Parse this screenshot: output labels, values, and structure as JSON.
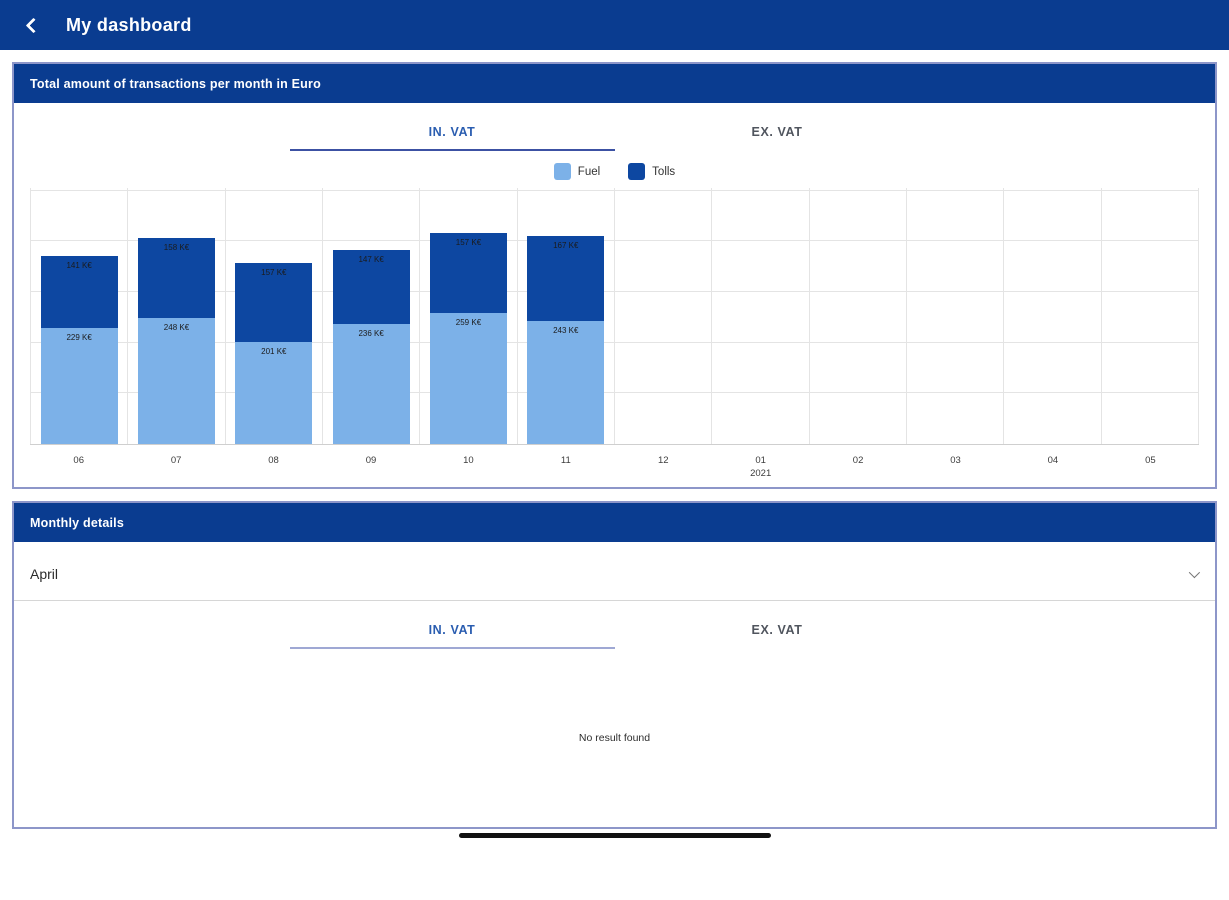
{
  "app_bar": {
    "back_icon": "chevron-left",
    "title": "My dashboard"
  },
  "chart_card": {
    "header": "Total amount of transactions per month in Euro",
    "tabs": [
      {
        "label": "IN. VAT",
        "active": true
      },
      {
        "label": "EX. VAT",
        "active": false
      }
    ],
    "legend": [
      {
        "label": "Fuel",
        "color": "#7CB1E8"
      },
      {
        "label": "Tolls",
        "color": "#0D47A1"
      }
    ]
  },
  "chart_data": {
    "type": "bar",
    "stacked": true,
    "title": "Total amount of transactions per month in Euro",
    "categories": [
      "06",
      "07",
      "08",
      "09",
      "10",
      "11",
      "12",
      "01",
      "02",
      "03",
      "04",
      "05"
    ],
    "x_secondary_label": {
      "index": 7,
      "label": "2021"
    },
    "series": [
      {
        "name": "Fuel",
        "color": "#7CB1E8",
        "values": [
          229,
          248,
          201,
          236,
          259,
          243,
          null,
          null,
          null,
          null,
          null,
          null
        ]
      },
      {
        "name": "Tolls",
        "color": "#0D47A1",
        "values": [
          141,
          158,
          157,
          147,
          157,
          167,
          null,
          null,
          null,
          null,
          null,
          null
        ]
      }
    ],
    "bar_label_suffix": " K€",
    "ylim": [
      0,
      507
    ],
    "grid_step": 100,
    "grid": true,
    "legend_position": "top",
    "xlabel": "",
    "ylabel": ""
  },
  "details_card": {
    "header": "Monthly details",
    "month_select": {
      "value": "April",
      "chevron_icon": "chevron-down"
    },
    "tabs": [
      {
        "label": "IN. VAT",
        "active": true
      },
      {
        "label": "EX. VAT",
        "active": false
      }
    ],
    "empty_message": "No result found"
  },
  "colors": {
    "primary": "#0A3C90",
    "fuel": "#7CB1E8",
    "tolls": "#0D47A1",
    "active_tab": "#2A5DB0"
  }
}
